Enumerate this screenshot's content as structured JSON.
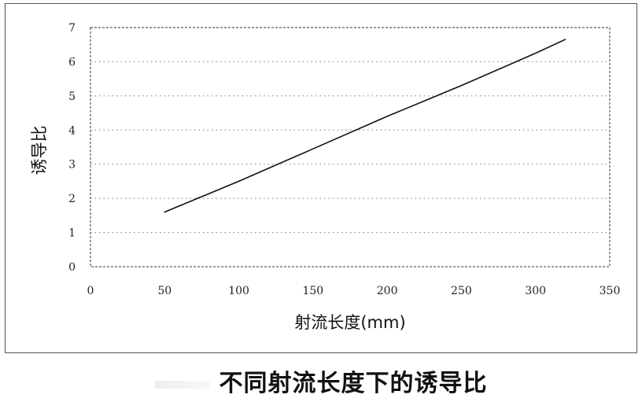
{
  "caption": "不同射流长度下的诱导比",
  "chart_data": {
    "type": "line",
    "title": "",
    "xlabel": "射流长度(mm)",
    "ylabel": "诱导比",
    "xlim": [
      0,
      350
    ],
    "ylim": [
      0,
      7
    ],
    "x_ticks": [
      0,
      50,
      100,
      150,
      200,
      250,
      300,
      350
    ],
    "y_ticks": [
      0,
      1,
      2,
      3,
      4,
      5,
      6,
      7
    ],
    "grid": true,
    "legend": "none",
    "series": [
      {
        "x": [
          50,
          100,
          150,
          200,
          250,
          300,
          320
        ],
        "y": [
          1.6,
          2.5,
          3.45,
          4.4,
          5.3,
          6.25,
          6.65
        ],
        "color": "#111111"
      }
    ]
  }
}
